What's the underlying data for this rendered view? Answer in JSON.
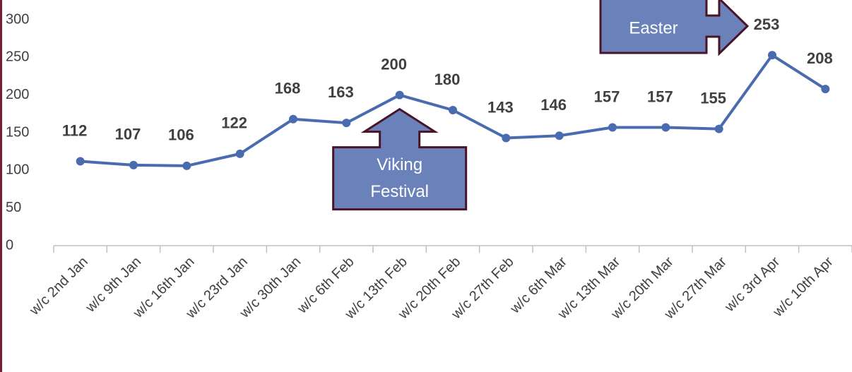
{
  "chart_data": {
    "type": "line",
    "categories": [
      "w/c 2nd Jan",
      "w/c 9th Jan",
      "w/c 16th Jan",
      "w/c 23rd Jan",
      "w/c 30th Jan",
      "w/c 6th Feb",
      "w/c 13th Feb",
      "w/c 20th Feb",
      "w/c 27th Feb",
      "w/c 6th Mar",
      "w/c 13th Mar",
      "w/c 20th Mar",
      "w/c 27th Mar",
      "w/c 3rd Apr",
      "w/c 10th Apr"
    ],
    "series": [
      {
        "color": "#4a6cae",
        "values": [
          112,
          107,
          106,
          122,
          168,
          163,
          200,
          180,
          143,
          146,
          157,
          157,
          155,
          253,
          208
        ]
      }
    ],
    "ylim": [
      0,
      300
    ],
    "yticks": [
      0,
      50,
      100,
      150,
      200,
      250,
      300
    ],
    "grid": false,
    "annotations": [
      {
        "lines": [
          "Viking",
          "Festival"
        ],
        "category": 6
      },
      {
        "lines": [
          "Easter"
        ],
        "category": 13
      }
    ]
  }
}
